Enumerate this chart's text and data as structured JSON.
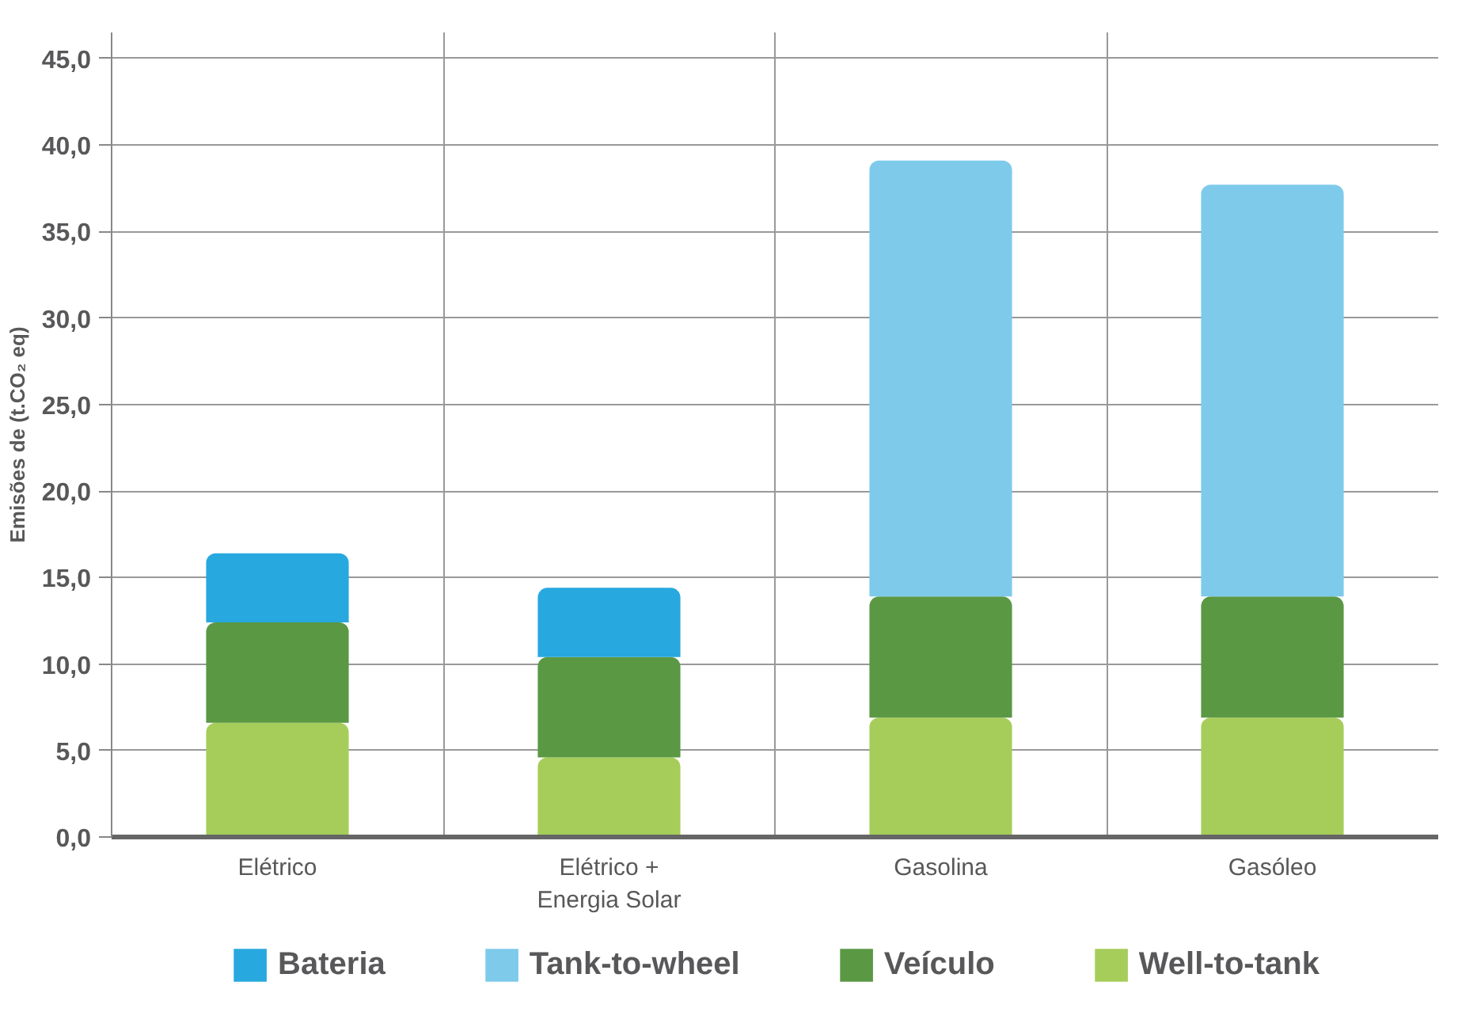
{
  "chart_data": {
    "type": "bar",
    "stacked": true,
    "ylabel": "Emisões de (t.CO₂ eq)",
    "categories": [
      "Elétrico",
      "Elétrico +\nEnergia Solar",
      "Gasolina",
      "Gasóleo"
    ],
    "series": [
      {
        "name": "Well-to-tank",
        "color": "#a6cd5a",
        "values": [
          6.6,
          4.6,
          6.9,
          6.9
        ]
      },
      {
        "name": "Veículo",
        "color": "#5a9844",
        "values": [
          5.8,
          5.8,
          7.0,
          7.0
        ]
      },
      {
        "name": "Tank-to-wheel",
        "color": "#7ecaeb",
        "values": [
          null,
          null,
          25.2,
          23.8
        ]
      },
      {
        "name": "Bateria",
        "color": "#27a8df",
        "values": [
          4.0,
          4.0,
          null,
          null
        ]
      }
    ],
    "ylim": [
      0,
      46.5
    ],
    "yticks": [
      {
        "value": 0,
        "label": "0,0"
      },
      {
        "value": 5,
        "label": "5,0"
      },
      {
        "value": 10,
        "label": "10,0"
      },
      {
        "value": 15,
        "label": "15,0"
      },
      {
        "value": 20,
        "label": "20,0"
      },
      {
        "value": 25,
        "label": "25,0"
      },
      {
        "value": 30,
        "label": "30,0"
      },
      {
        "value": 35,
        "label": "35,0"
      },
      {
        "value": 40,
        "label": "40,0"
      },
      {
        "value": 45,
        "label": "45,0"
      }
    ],
    "grid": "y",
    "legend": "bottom"
  }
}
